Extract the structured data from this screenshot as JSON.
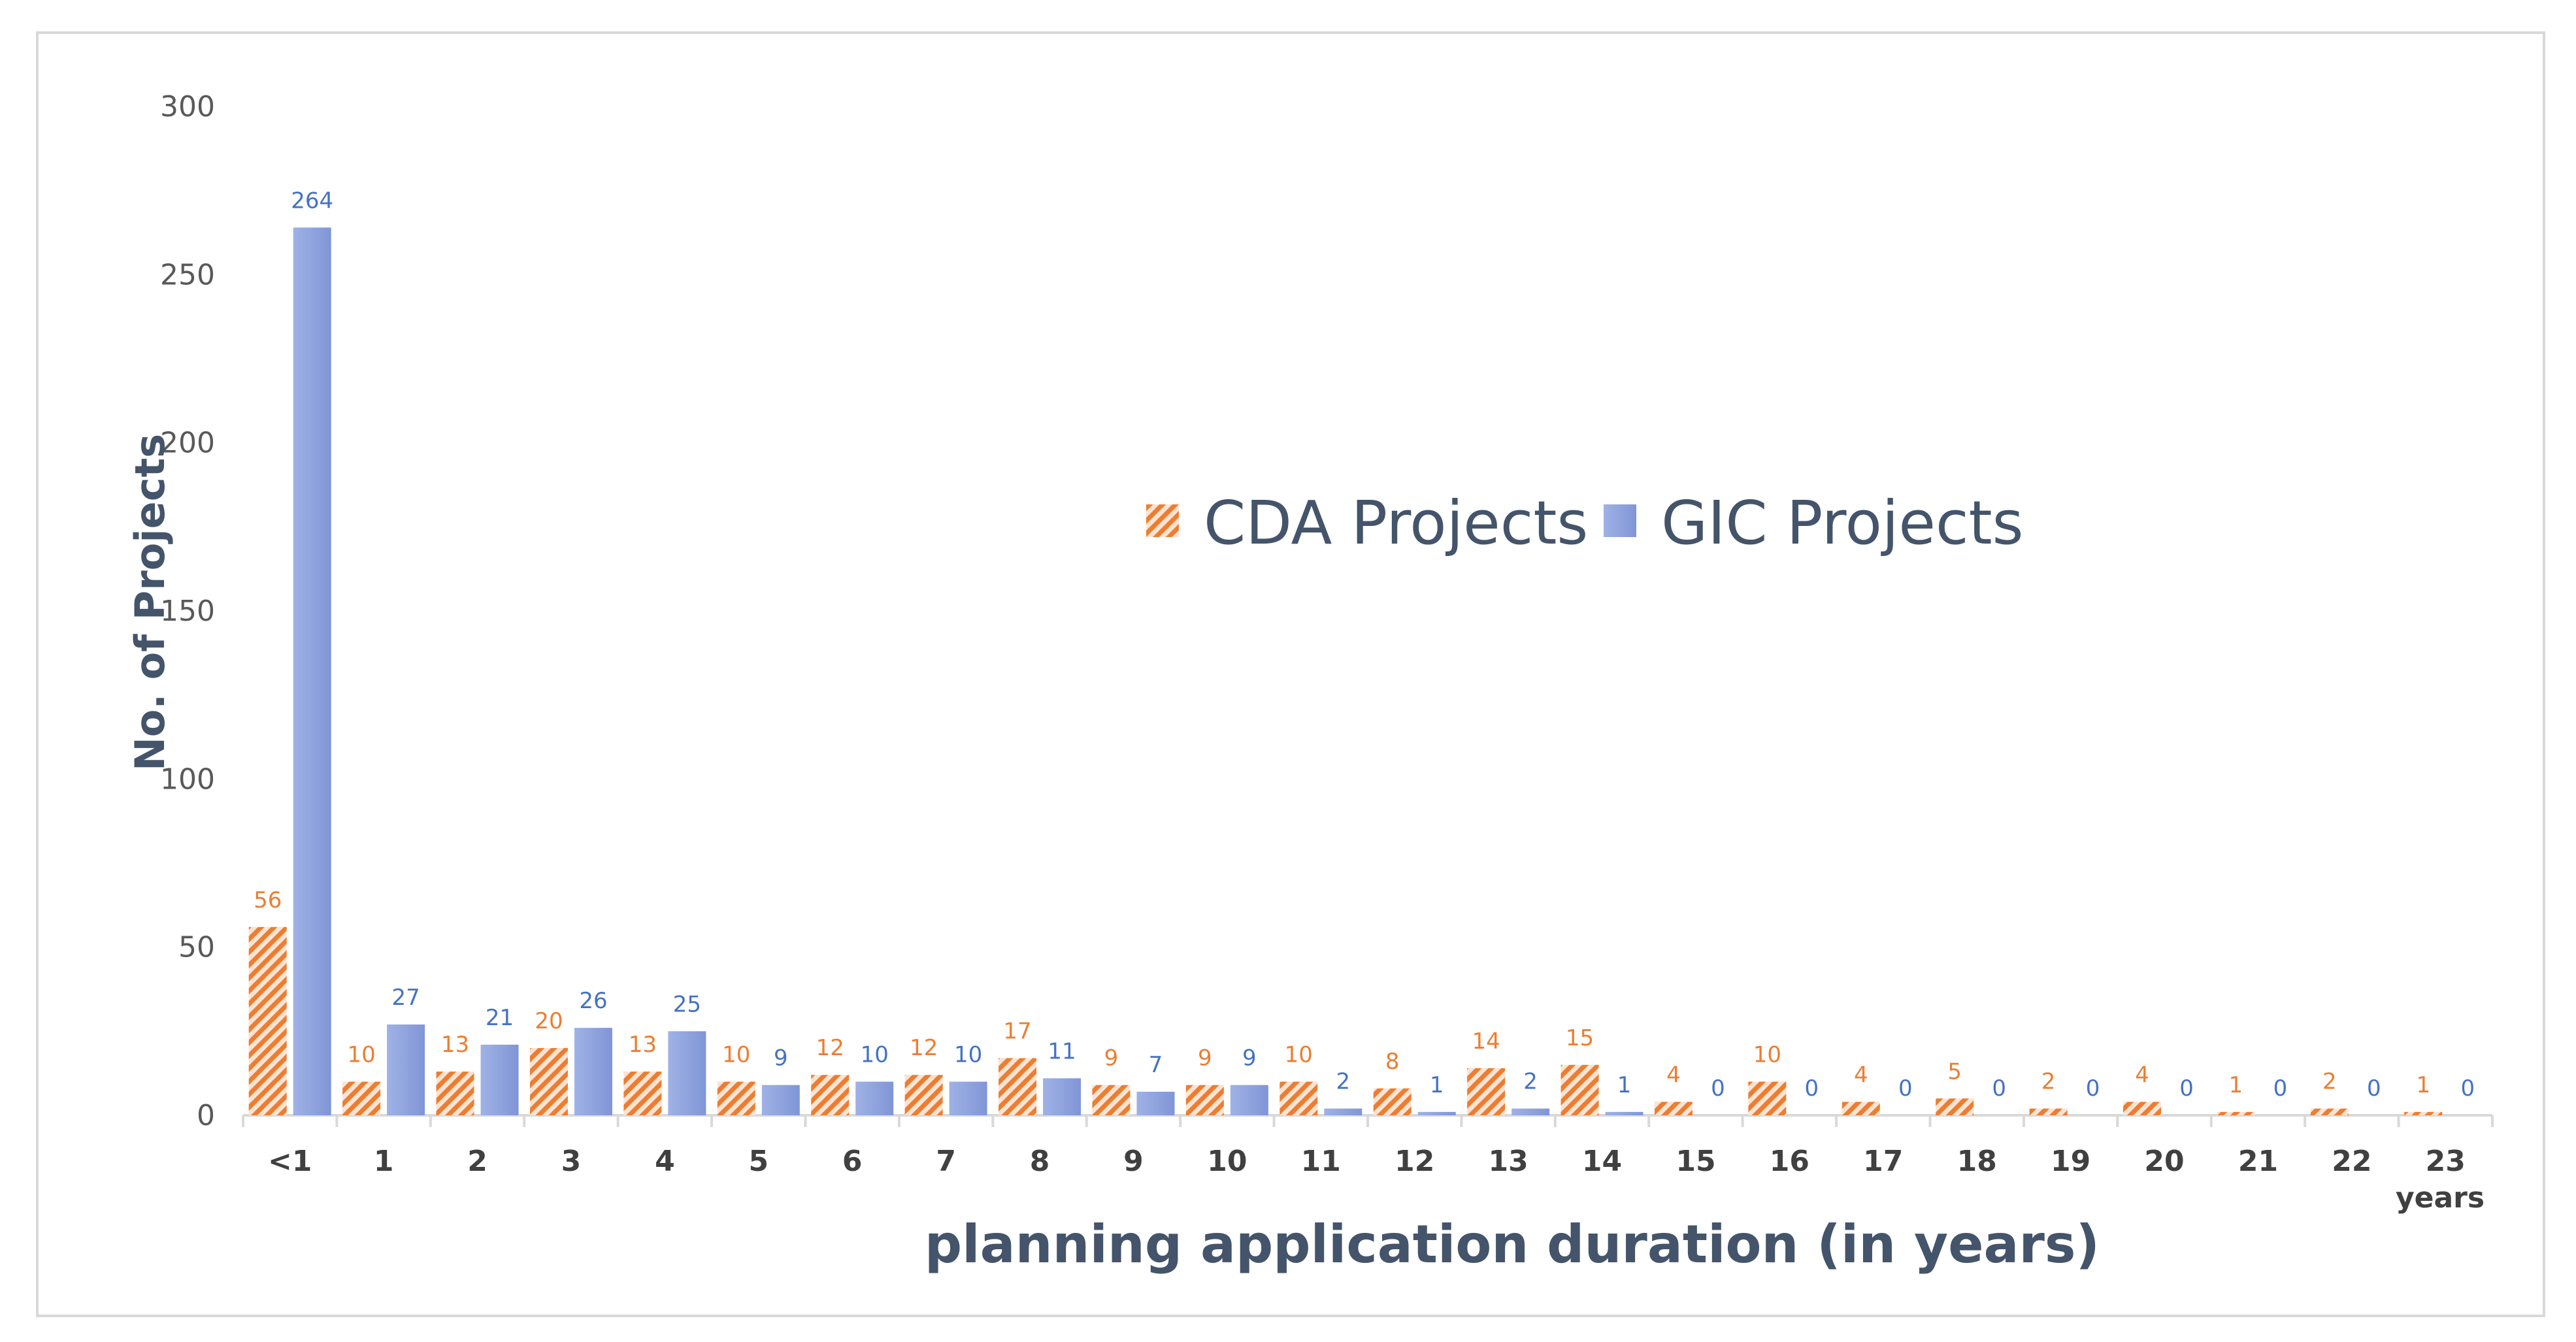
{
  "chart_data": {
    "type": "bar",
    "title": "",
    "xlabel": "planning application duration (in years)",
    "ylabel": "No. of Projects",
    "x_unit_label": "years",
    "ylim": [
      0,
      300
    ],
    "yticks": [
      0,
      50,
      100,
      150,
      200,
      250,
      300
    ],
    "categories": [
      "<1",
      "1",
      "2",
      "3",
      "4",
      "5",
      "6",
      "7",
      "8",
      "9",
      "10",
      "11",
      "12",
      "13",
      "14",
      "15",
      "16",
      "17",
      "18",
      "19",
      "20",
      "21",
      "22",
      "23"
    ],
    "series": [
      {
        "name": "CDA Projects",
        "color": "#ed7d31",
        "pattern": "diagonal-hatch",
        "values": [
          56,
          10,
          13,
          20,
          13,
          10,
          12,
          12,
          17,
          9,
          9,
          10,
          8,
          14,
          15,
          4,
          10,
          4,
          5,
          2,
          4,
          1,
          2,
          1
        ]
      },
      {
        "name": "GIC Projects",
        "color": "#4472c4",
        "pattern": "solid-gradient",
        "values": [
          264,
          27,
          21,
          26,
          25,
          9,
          10,
          10,
          11,
          7,
          9,
          2,
          1,
          2,
          1,
          0,
          0,
          0,
          0,
          0,
          0,
          0,
          0,
          0
        ]
      }
    ],
    "legend": {
      "position": "center",
      "entries": [
        "CDA Projects",
        "GIC Projects"
      ]
    },
    "grid": false
  }
}
